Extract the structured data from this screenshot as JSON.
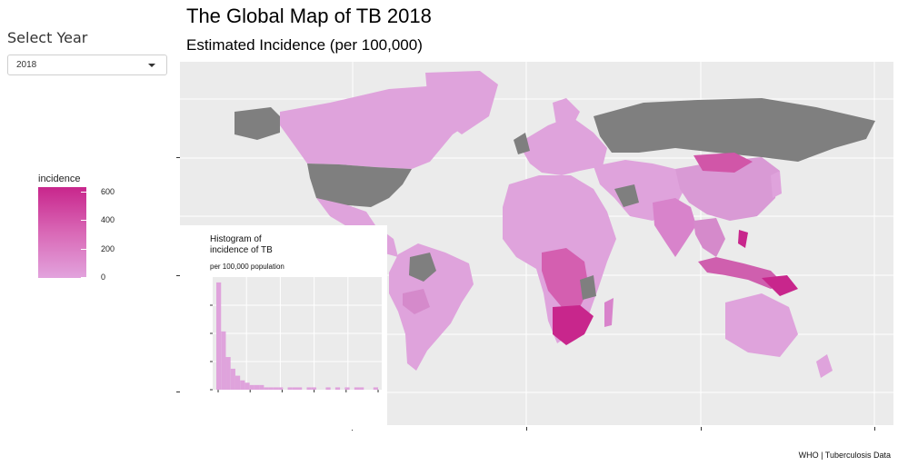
{
  "sidebar": {
    "select_label": "Select Year",
    "selected_year": "2018",
    "legend": {
      "title": "incidence",
      "ticks": [
        "600",
        "400",
        "200",
        "0"
      ],
      "colors": {
        "high": "#c8268c",
        "mid": "#d968b6",
        "low": "#e2a3dd"
      }
    }
  },
  "header": {
    "title": "The Global Map of TB 2018",
    "subtitle": "Estimated Incidence (per 100,000)"
  },
  "map": {
    "missing_color": "#7f7f7f",
    "background": "#ebebeb"
  },
  "inset": {
    "title": "Histogram of\nincidence of TB",
    "subtitle": "per 100,000 population"
  },
  "caption": "WHO | Tuberculosis Data",
  "chart_data": {
    "type": "bar",
    "values": [
      46,
      25,
      14,
      9,
      6,
      4,
      3,
      2,
      2,
      2,
      1,
      1,
      1,
      1,
      0,
      1,
      1,
      1,
      0,
      1,
      1,
      0,
      0,
      1,
      0,
      1,
      0,
      1,
      0,
      1,
      1,
      0,
      0,
      1
    ]
  }
}
